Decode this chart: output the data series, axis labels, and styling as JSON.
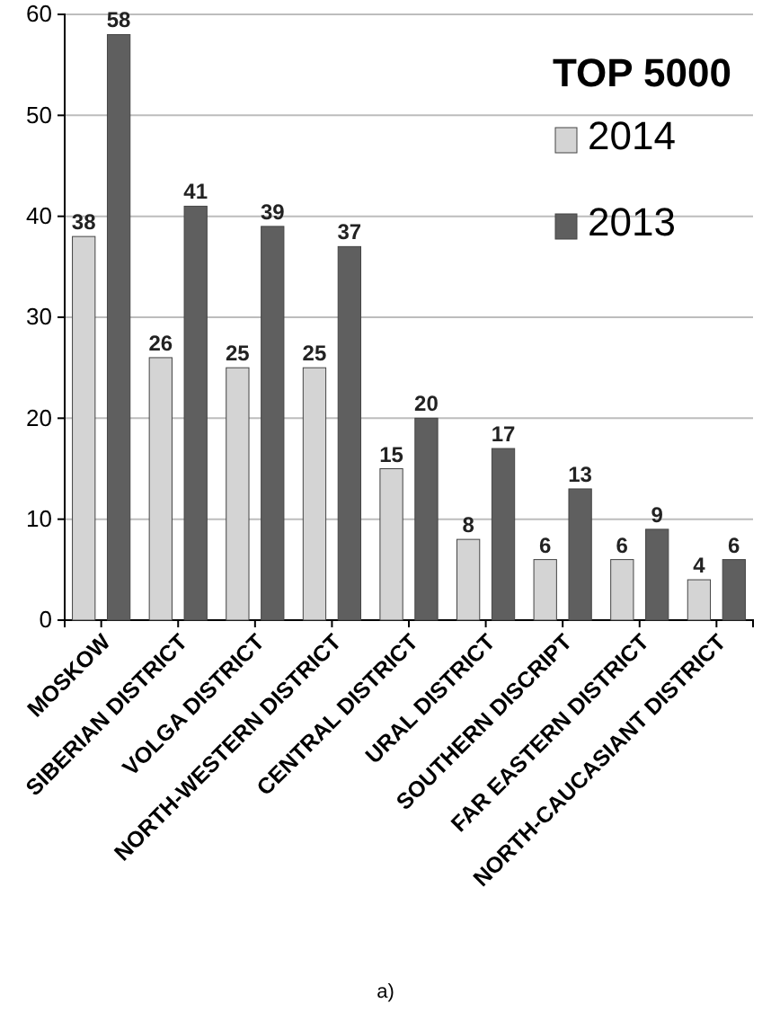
{
  "chart_data": {
    "type": "bar",
    "title": "TOP 5000",
    "categories": [
      "MOSKOW",
      "SIBERIAN DISTRICT",
      "VOLGA DISTRICT",
      "NORTH-WESTERN DISTRICT",
      "CENTRAL DISTRICT",
      "URAL DISTRICT",
      "SOUTHERN DISCRIPT",
      "FAR EASTERN DISTRICT",
      "NORTH-CAUCASIANT DISTRICT"
    ],
    "series": [
      {
        "name": "2014",
        "color": "#d4d4d4",
        "values": [
          38,
          26,
          25,
          25,
          15,
          8,
          6,
          6,
          4
        ]
      },
      {
        "name": "2013",
        "color": "#5f5f5f",
        "values": [
          58,
          41,
          39,
          37,
          20,
          17,
          13,
          9,
          6
        ]
      }
    ],
    "ylim": [
      0,
      60
    ],
    "yticks": [
      0,
      10,
      20,
      30,
      40,
      50,
      60
    ],
    "grid": "y",
    "legend": "top right",
    "data_labels": true,
    "annotations": [
      "a)"
    ]
  }
}
